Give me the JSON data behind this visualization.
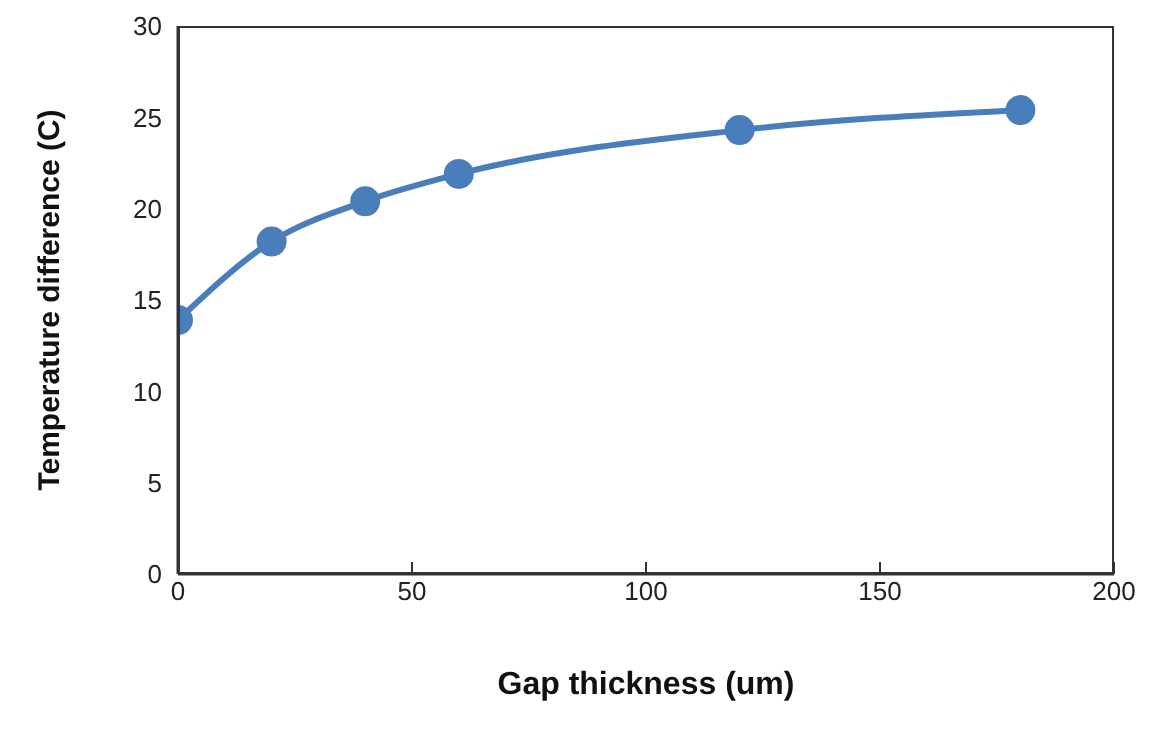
{
  "chart_data": {
    "type": "line",
    "xlabel": "Gap thickness (um)",
    "ylabel": "Temperature difference (C)",
    "x": [
      0,
      20,
      40,
      60,
      120,
      180
    ],
    "series": [
      {
        "color": "#4a7ebb",
        "values": [
          13.9,
          18.2,
          20.4,
          21.9,
          24.3,
          25.4
        ]
      }
    ],
    "xlim": [
      0,
      200
    ],
    "xticks": [
      0,
      50,
      100,
      150,
      200
    ],
    "ylim": [
      0,
      30
    ],
    "yticks": [
      0,
      5,
      10,
      15,
      20,
      25,
      30
    ],
    "grid": false,
    "legend": false,
    "marker": "circle",
    "line_style": "solid"
  }
}
